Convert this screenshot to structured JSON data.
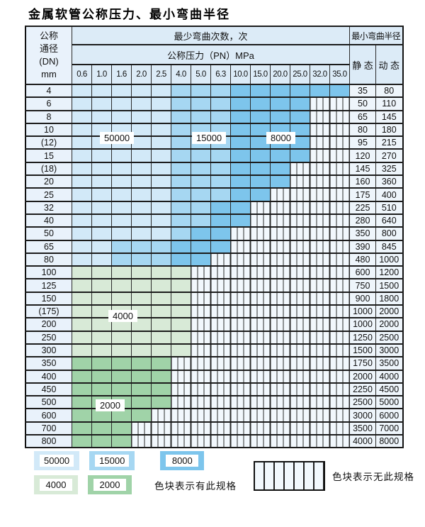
{
  "title": "金属软管公称压力、最小弯曲半径",
  "colors": {
    "c50000": "#d2e9f8",
    "c15000": "#a6d7f2",
    "c8000": "#7dc5ec",
    "c4000": "#d8ead7",
    "c2000": "#a0d3a8",
    "hatch_bg": "#f2f8fd",
    "header_bg": "#dcebf7",
    "label_col_bg": "#e9f2fb",
    "value_col_bg": "#eef5fb",
    "border": "#222222"
  },
  "chart_data": {
    "type": "heatmap",
    "title": "金属软管公称压力、最小弯曲半径",
    "header": {
      "corner_lines": [
        "公称",
        "通径",
        "(DN)",
        "mm"
      ],
      "bend_cycles": "最少弯曲次数，次",
      "pressure": "公称压力（PN）MPa",
      "radius": "最小弯曲半径",
      "static": "静 态",
      "dynamic": "动 态"
    },
    "pressures_MPa": [
      "0.6",
      "1.0",
      "1.6",
      "2.0",
      "2.5",
      "4.0",
      "5.0",
      "6.3",
      "10.0",
      "15.0",
      "20.0",
      "25.0",
      "32.0",
      "35.0"
    ],
    "cycle_levels": [
      50000,
      15000,
      8000,
      4000,
      2000
    ],
    "rows": [
      {
        "dn": "4",
        "cycles": [
          50000,
          50000,
          50000,
          50000,
          50000,
          15000,
          15000,
          15000,
          8000,
          8000,
          8000,
          8000,
          8000,
          8000
        ],
        "static": "35",
        "dynamic": "80"
      },
      {
        "dn": "6",
        "cycles": [
          50000,
          50000,
          50000,
          50000,
          50000,
          15000,
          15000,
          15000,
          8000,
          8000,
          8000,
          8000,
          null,
          null
        ],
        "static": "50",
        "dynamic": "110"
      },
      {
        "dn": "8",
        "cycles": [
          50000,
          50000,
          50000,
          50000,
          50000,
          15000,
          15000,
          15000,
          8000,
          8000,
          8000,
          8000,
          null,
          null
        ],
        "static": "65",
        "dynamic": "145"
      },
      {
        "dn": "10",
        "cycles": [
          50000,
          50000,
          50000,
          50000,
          50000,
          15000,
          15000,
          15000,
          8000,
          8000,
          8000,
          8000,
          null,
          null
        ],
        "static": "80",
        "dynamic": "180"
      },
      {
        "dn": "(12)",
        "cycles": [
          50000,
          50000,
          50000,
          50000,
          50000,
          15000,
          15000,
          15000,
          8000,
          8000,
          8000,
          8000,
          null,
          null
        ],
        "static": "95",
        "dynamic": "215"
      },
      {
        "dn": "15",
        "cycles": [
          50000,
          50000,
          50000,
          50000,
          50000,
          15000,
          15000,
          15000,
          8000,
          8000,
          8000,
          8000,
          null,
          null
        ],
        "static": "120",
        "dynamic": "270"
      },
      {
        "dn": "(18)",
        "cycles": [
          50000,
          50000,
          50000,
          50000,
          50000,
          15000,
          15000,
          15000,
          8000,
          8000,
          8000,
          null,
          null,
          null
        ],
        "static": "145",
        "dynamic": "325"
      },
      {
        "dn": "20",
        "cycles": [
          50000,
          50000,
          50000,
          50000,
          50000,
          15000,
          15000,
          15000,
          8000,
          8000,
          8000,
          null,
          null,
          null
        ],
        "static": "160",
        "dynamic": "360"
      },
      {
        "dn": "25",
        "cycles": [
          50000,
          50000,
          50000,
          50000,
          50000,
          15000,
          15000,
          15000,
          8000,
          8000,
          null,
          null,
          null,
          null
        ],
        "static": "175",
        "dynamic": "400"
      },
      {
        "dn": "32",
        "cycles": [
          50000,
          50000,
          50000,
          50000,
          50000,
          15000,
          15000,
          8000,
          8000,
          null,
          null,
          null,
          null,
          null
        ],
        "static": "225",
        "dynamic": "510"
      },
      {
        "dn": "40",
        "cycles": [
          50000,
          50000,
          50000,
          50000,
          50000,
          15000,
          15000,
          8000,
          8000,
          null,
          null,
          null,
          null,
          null
        ],
        "static": "280",
        "dynamic": "640"
      },
      {
        "dn": "50",
        "cycles": [
          50000,
          50000,
          50000,
          50000,
          50000,
          15000,
          8000,
          8000,
          null,
          null,
          null,
          null,
          null,
          null
        ],
        "static": "350",
        "dynamic": "800"
      },
      {
        "dn": "65",
        "cycles": [
          50000,
          50000,
          15000,
          15000,
          15000,
          8000,
          8000,
          8000,
          null,
          null,
          null,
          null,
          null,
          null
        ],
        "static": "390",
        "dynamic": "845"
      },
      {
        "dn": "80",
        "cycles": [
          50000,
          50000,
          15000,
          15000,
          15000,
          8000,
          8000,
          null,
          null,
          null,
          null,
          null,
          null,
          null
        ],
        "static": "480",
        "dynamic": "1000"
      },
      {
        "dn": "100",
        "cycles": [
          4000,
          4000,
          4000,
          4000,
          4000,
          4000,
          null,
          null,
          null,
          null,
          null,
          null,
          null,
          null
        ],
        "static": "600",
        "dynamic": "1200"
      },
      {
        "dn": "125",
        "cycles": [
          4000,
          4000,
          4000,
          4000,
          4000,
          4000,
          null,
          null,
          null,
          null,
          null,
          null,
          null,
          null
        ],
        "static": "750",
        "dynamic": "1500"
      },
      {
        "dn": "150",
        "cycles": [
          4000,
          4000,
          4000,
          4000,
          4000,
          4000,
          null,
          null,
          null,
          null,
          null,
          null,
          null,
          null
        ],
        "static": "900",
        "dynamic": "1800"
      },
      {
        "dn": "(175)",
        "cycles": [
          4000,
          4000,
          4000,
          4000,
          4000,
          4000,
          null,
          null,
          null,
          null,
          null,
          null,
          null,
          null
        ],
        "static": "1000",
        "dynamic": "2000"
      },
      {
        "dn": "200",
        "cycles": [
          4000,
          4000,
          4000,
          4000,
          4000,
          4000,
          null,
          null,
          null,
          null,
          null,
          null,
          null,
          null
        ],
        "static": "1000",
        "dynamic": "2000"
      },
      {
        "dn": "250",
        "cycles": [
          4000,
          4000,
          4000,
          4000,
          4000,
          4000,
          null,
          null,
          null,
          null,
          null,
          null,
          null,
          null
        ],
        "static": "1250",
        "dynamic": "2500"
      },
      {
        "dn": "300",
        "cycles": [
          4000,
          4000,
          4000,
          4000,
          4000,
          4000,
          null,
          null,
          null,
          null,
          null,
          null,
          null,
          null
        ],
        "static": "1500",
        "dynamic": "3000"
      },
      {
        "dn": "350",
        "cycles": [
          2000,
          2000,
          2000,
          2000,
          2000,
          null,
          null,
          null,
          null,
          null,
          null,
          null,
          null,
          null
        ],
        "static": "1750",
        "dynamic": "3500"
      },
      {
        "dn": "400",
        "cycles": [
          2000,
          2000,
          2000,
          2000,
          2000,
          null,
          null,
          null,
          null,
          null,
          null,
          null,
          null,
          null
        ],
        "static": "2000",
        "dynamic": "4000"
      },
      {
        "dn": "450",
        "cycles": [
          2000,
          2000,
          2000,
          2000,
          2000,
          null,
          null,
          null,
          null,
          null,
          null,
          null,
          null,
          null
        ],
        "static": "2250",
        "dynamic": "4500"
      },
      {
        "dn": "500",
        "cycles": [
          2000,
          2000,
          2000,
          2000,
          2000,
          null,
          null,
          null,
          null,
          null,
          null,
          null,
          null,
          null
        ],
        "static": "2500",
        "dynamic": "5000"
      },
      {
        "dn": "600",
        "cycles": [
          2000,
          2000,
          2000,
          2000,
          null,
          null,
          null,
          null,
          null,
          null,
          null,
          null,
          null,
          null
        ],
        "static": "3000",
        "dynamic": "6000"
      },
      {
        "dn": "700",
        "cycles": [
          2000,
          2000,
          2000,
          null,
          null,
          null,
          null,
          null,
          null,
          null,
          null,
          null,
          null,
          null
        ],
        "static": "3500",
        "dynamic": "7000"
      },
      {
        "dn": "800",
        "cycles": [
          2000,
          2000,
          2000,
          null,
          null,
          null,
          null,
          null,
          null,
          null,
          null,
          null,
          null,
          null
        ],
        "static": "4000",
        "dynamic": "8000"
      }
    ],
    "region_labels": [
      {
        "id": "l50000",
        "text": "50000"
      },
      {
        "id": "l15000",
        "text": "15000"
      },
      {
        "id": "l8000",
        "text": "8000"
      },
      {
        "id": "l4000",
        "text": "4000"
      },
      {
        "id": "l2000",
        "text": "2000"
      }
    ]
  },
  "legend": {
    "chips": [
      {
        "label": "50000",
        "color": "#d2e9f8",
        "row": 1
      },
      {
        "label": "15000",
        "color": "#a6d7f2",
        "row": 1
      },
      {
        "label": "8000",
        "color": "#7dc5ec",
        "row": 1
      },
      {
        "label": "4000",
        "color": "#d8ead7",
        "row": 2
      },
      {
        "label": "2000",
        "color": "#a0d3a8",
        "row": 2
      }
    ],
    "has_spec_text": "色块表示有此规格",
    "no_spec_text": "色块表示无此规格"
  }
}
